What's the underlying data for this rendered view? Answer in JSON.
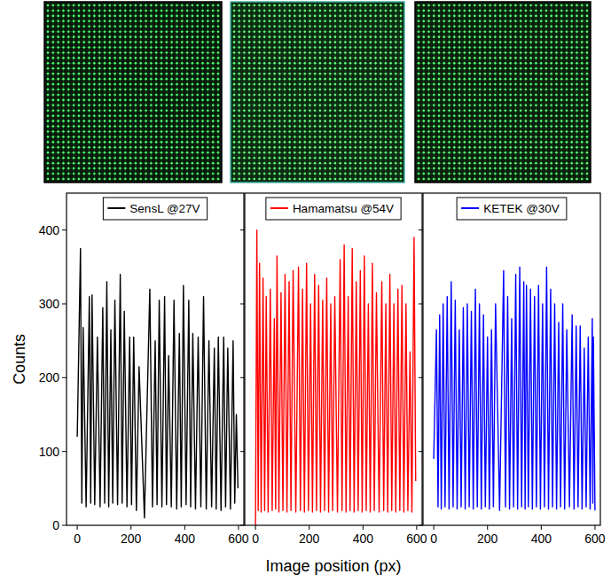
{
  "chart_data": [
    {
      "type": "line",
      "x": [
        0,
        12,
        17,
        22,
        33,
        45,
        50,
        55,
        65,
        75,
        85,
        95,
        102,
        110,
        117,
        125,
        132,
        140,
        150,
        160,
        167,
        175,
        185,
        195,
        202,
        210,
        220,
        230,
        250,
        270,
        280,
        290,
        297,
        305,
        315,
        325,
        332,
        340,
        350,
        360,
        370,
        380,
        387,
        395,
        405,
        415,
        422,
        430,
        440,
        450,
        460,
        470,
        480,
        490,
        500,
        510,
        517,
        525,
        535,
        545,
        552,
        560,
        570,
        580,
        586,
        592,
        598
      ],
      "series": [
        {
          "name": "SensL @27V",
          "color": "#000000",
          "values": [
            120,
            375,
            30,
            268,
            25,
            310,
            30,
            312,
            28,
            255,
            25,
            295,
            30,
            330,
            25,
            265,
            30,
            305,
            28,
            340,
            30,
            290,
            25,
            255,
            28,
            255,
            20,
            215,
            10,
            320,
            25,
            250,
            28,
            305,
            25,
            310,
            28,
            230,
            25,
            305,
            22,
            260,
            25,
            325,
            28,
            305,
            25,
            260,
            22,
            255,
            25,
            310,
            22,
            250,
            25,
            240,
            22,
            255,
            20,
            255,
            25,
            240,
            22,
            250,
            30,
            150,
            50
          ]
        }
      ],
      "xlim": [
        -40,
        620
      ],
      "xticks": [
        0,
        200,
        400,
        600
      ],
      "ylim": [
        0,
        450
      ],
      "yticks": [
        0,
        100,
        200,
        300,
        400
      ],
      "ylabel": "Counts",
      "legend": "upper center",
      "tick_labels": true
    },
    {
      "type": "line",
      "x": [
        0,
        5,
        10,
        15,
        21,
        28,
        34,
        40,
        47,
        55,
        62,
        70,
        75,
        80,
        87,
        95,
        102,
        110,
        117,
        125,
        132,
        140,
        150,
        160,
        167,
        175,
        182,
        190,
        197,
        205,
        212,
        220,
        227,
        235,
        242,
        250,
        257,
        265,
        272,
        280,
        287,
        295,
        305,
        315,
        322,
        330,
        337,
        345,
        352,
        360,
        367,
        375,
        382,
        390,
        397,
        405,
        412,
        420,
        427,
        435,
        442,
        450,
        460,
        470,
        477,
        485,
        492,
        500,
        507,
        515,
        522,
        530,
        537,
        545,
        552,
        560,
        567,
        575,
        582,
        590,
        596
      ],
      "series": [
        {
          "name": "Hamamatsu @54V",
          "color": "#ff0000",
          "values": [
            0,
            400,
            20,
            355,
            18,
            335,
            20,
            310,
            18,
            320,
            20,
            280,
            22,
            365,
            18,
            315,
            20,
            340,
            18,
            330,
            20,
            345,
            18,
            350,
            20,
            320,
            18,
            355,
            20,
            300,
            18,
            340,
            20,
            325,
            18,
            305,
            20,
            335,
            18,
            300,
            20,
            310,
            18,
            360,
            20,
            380,
            18,
            310,
            20,
            375,
            18,
            330,
            20,
            345,
            18,
            365,
            20,
            300,
            18,
            355,
            20,
            315,
            18,
            330,
            20,
            300,
            18,
            340,
            20,
            300,
            18,
            320,
            20,
            325,
            18,
            300,
            20,
            235,
            18,
            390,
            60
          ]
        }
      ],
      "xlim": [
        -40,
        620
      ],
      "xticks": [
        0,
        200,
        400,
        600
      ],
      "ylim": [
        0,
        450
      ],
      "yticks": [
        0,
        100,
        200,
        300,
        400
      ],
      "xlabel": "Image position (px)",
      "legend": "upper center",
      "tick_labels": "x"
    },
    {
      "type": "line",
      "x": [
        0,
        10,
        16,
        22,
        28,
        35,
        42,
        50,
        57,
        65,
        72,
        80,
        87,
        95,
        102,
        110,
        117,
        125,
        132,
        140,
        147,
        155,
        162,
        170,
        177,
        185,
        192,
        200,
        207,
        215,
        222,
        230,
        245,
        260,
        267,
        275,
        282,
        290,
        297,
        305,
        312,
        320,
        327,
        335,
        340,
        345,
        352,
        360,
        367,
        375,
        382,
        390,
        397,
        405,
        412,
        420,
        427,
        435,
        442,
        450,
        457,
        465,
        472,
        480,
        487,
        495,
        505,
        515,
        522,
        530,
        537,
        545,
        552,
        560,
        567,
        575,
        582,
        590,
        592,
        594,
        600
      ],
      "series": [
        {
          "name": "KETEK @30V",
          "color": "#0000ff",
          "values": [
            90,
            265,
            25,
            285,
            22,
            300,
            25,
            310,
            22,
            330,
            25,
            305,
            22,
            265,
            25,
            295,
            22,
            300,
            25,
            290,
            22,
            320,
            25,
            300,
            22,
            285,
            25,
            255,
            22,
            265,
            25,
            300,
            20,
            345,
            25,
            310,
            22,
            280,
            25,
            340,
            22,
            350,
            25,
            330,
            22,
            325,
            25,
            320,
            22,
            310,
            25,
            325,
            22,
            300,
            25,
            350,
            22,
            320,
            25,
            300,
            22,
            275,
            25,
            300,
            22,
            265,
            25,
            285,
            22,
            270,
            25,
            270,
            22,
            240,
            25,
            255,
            22,
            280,
            30,
            255,
            20
          ]
        }
      ],
      "xlim": [
        -40,
        620
      ],
      "xticks": [
        0,
        200,
        400,
        600
      ],
      "ylim": [
        0,
        450
      ],
      "yticks": [
        0,
        100,
        200,
        300,
        400
      ],
      "legend": "upper center",
      "tick_labels": "x"
    }
  ]
}
